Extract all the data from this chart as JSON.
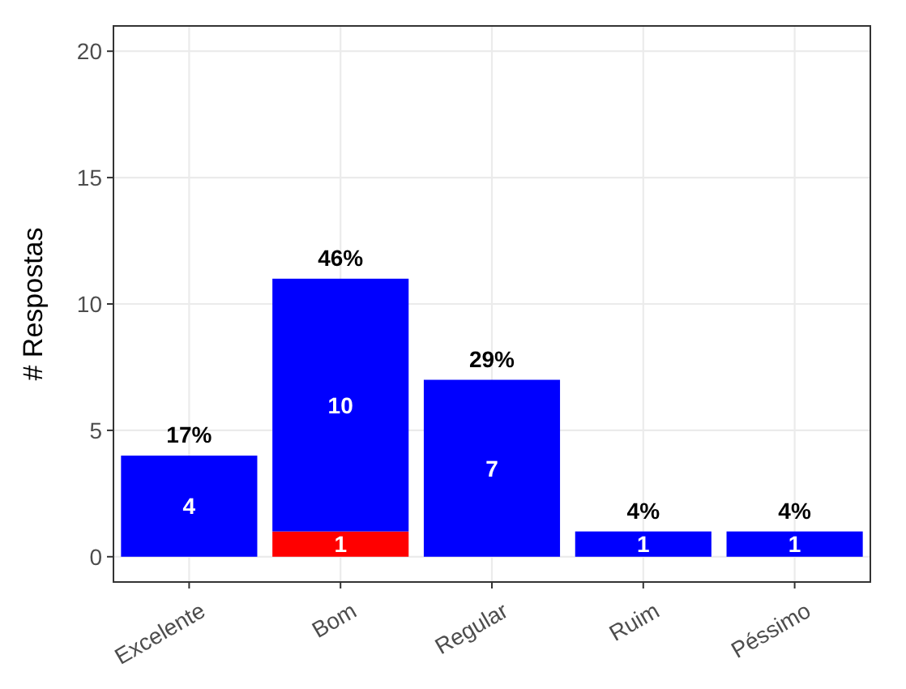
{
  "chart_data": {
    "type": "bar",
    "ylabel": "# Respostas",
    "categories": [
      "Excelente",
      "Bom",
      "Regular",
      "Ruim",
      "Péssimo"
    ],
    "stacked": true,
    "series": [
      {
        "color": "#ff0000",
        "values": [
          0,
          1,
          0,
          0,
          0
        ],
        "value_labels": [
          null,
          "1",
          null,
          null,
          null
        ]
      },
      {
        "color": "#0000ff",
        "values": [
          4,
          10,
          7,
          1,
          1
        ],
        "value_labels": [
          "4",
          "10",
          "7",
          "1",
          "1"
        ]
      }
    ],
    "annotations": [
      {
        "text": "17%",
        "x": "Excelente",
        "y": 4
      },
      {
        "text": "46%",
        "x": "Bom",
        "y": 11
      },
      {
        "text": "29%",
        "x": "Regular",
        "y": 7
      },
      {
        "text": "4%",
        "x": "Ruim",
        "y": 1
      },
      {
        "text": "4%",
        "x": "Péssimo",
        "y": 1
      }
    ],
    "ylim": [
      -1,
      21
    ],
    "yticks": [
      0,
      5,
      10,
      15,
      20
    ],
    "grid": true
  }
}
